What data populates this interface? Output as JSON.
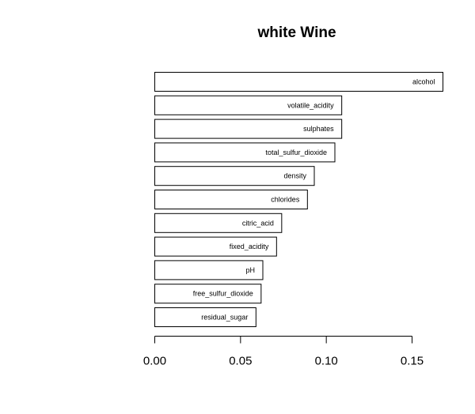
{
  "chart_data": {
    "type": "bar",
    "orientation": "horizontal",
    "title": "white Wine",
    "xlabel": "",
    "ylabel": "",
    "categories": [
      "alcohol",
      "volatile_acidity",
      "sulphates",
      "total_sulfur_dioxide",
      "density",
      "chlorides",
      "citric_acid",
      "fixed_acidity",
      "pH",
      "free_sulfur_dioxide",
      "residual_sugar"
    ],
    "values": [
      0.168,
      0.109,
      0.109,
      0.105,
      0.093,
      0.089,
      0.074,
      0.071,
      0.063,
      0.062,
      0.059
    ],
    "xlim": [
      0,
      0.15
    ],
    "xticks": [
      0.0,
      0.05,
      0.1,
      0.15
    ],
    "xtick_labels": [
      "0.00",
      "0.05",
      "0.10",
      "0.15"
    ],
    "grid": false,
    "bar_fill": "#ffffff",
    "bar_stroke": "#000000"
  }
}
